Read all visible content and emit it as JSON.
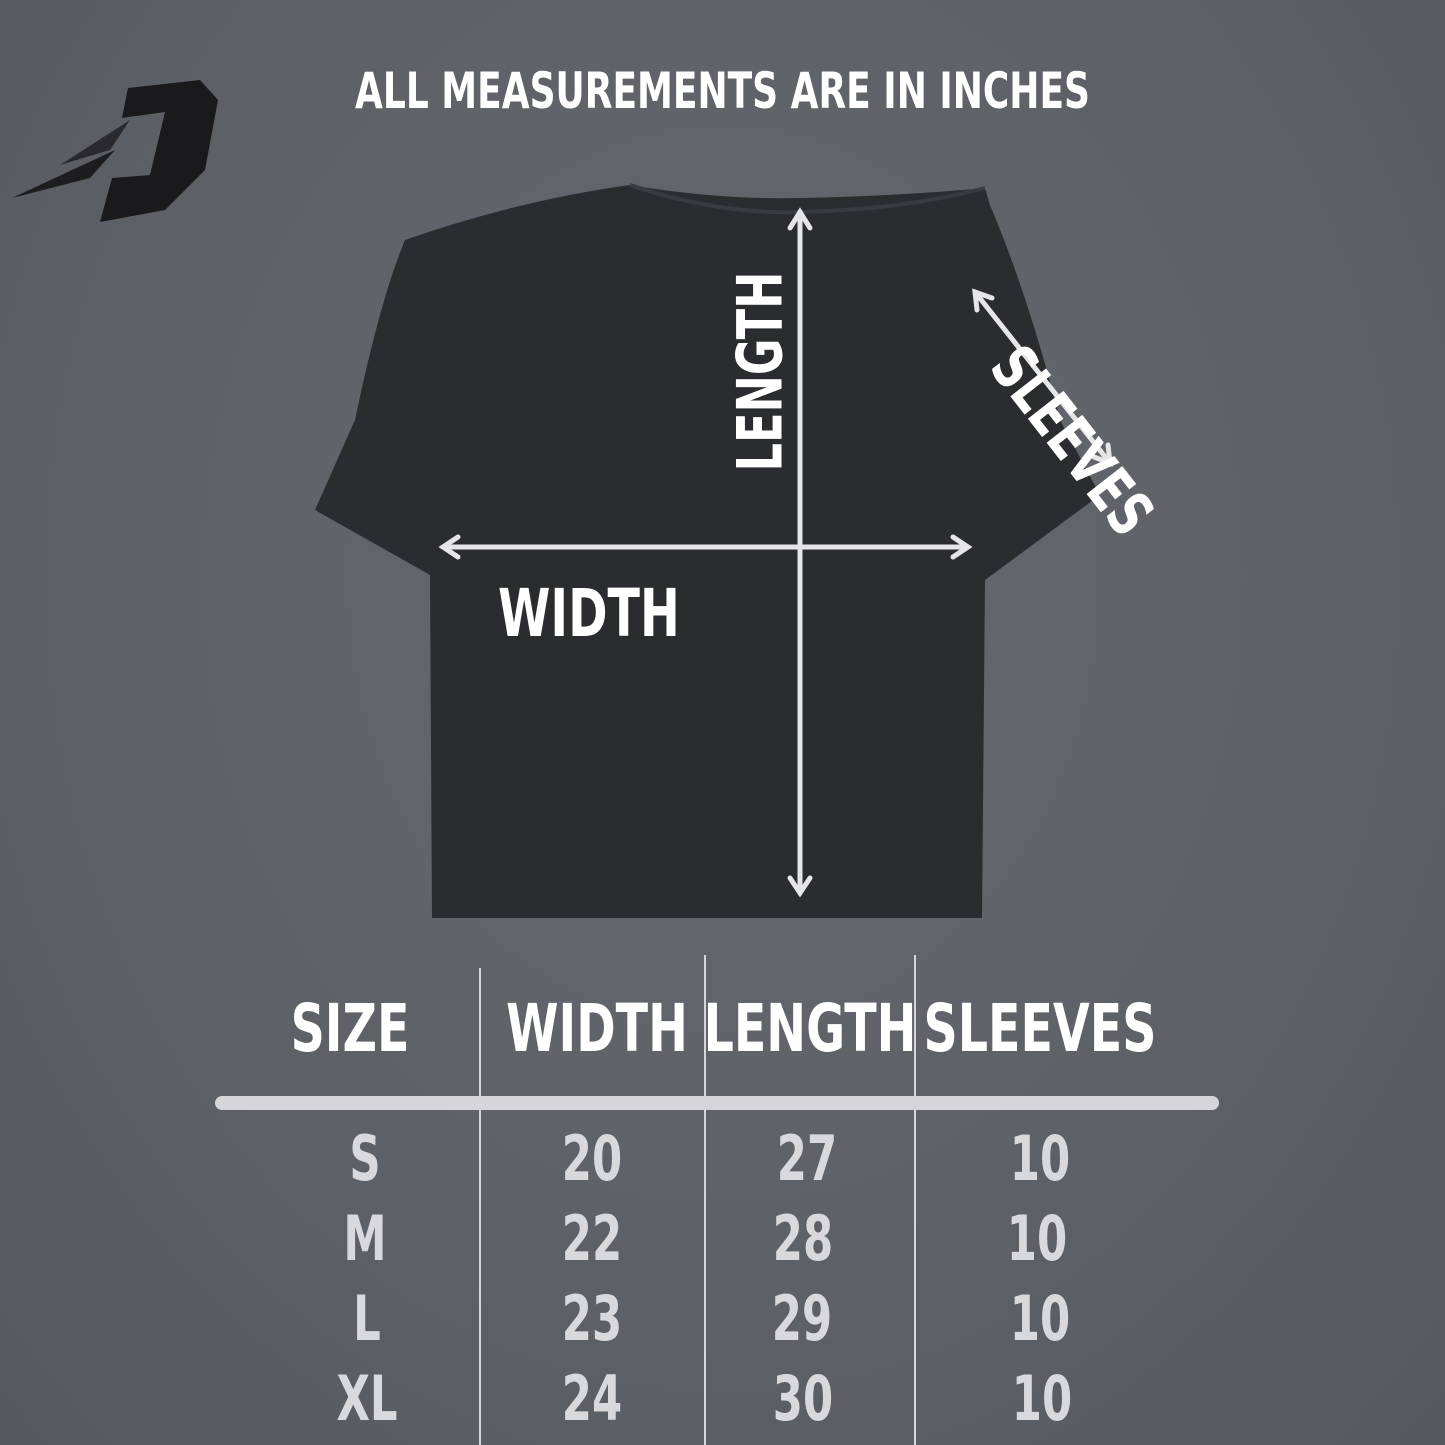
{
  "logo": {
    "text": "D",
    "icon": "stylized-d-logo"
  },
  "title": "ALL MEASUREMENTS ARE IN INCHES",
  "diagram": {
    "length_label": "LENGTH",
    "width_label": "WIDTH",
    "sleeves_label": "SLEEVES"
  },
  "table": {
    "headers": [
      "SIZE",
      "WIDTH",
      "LENGTH",
      "SLEEVES"
    ],
    "rows": [
      [
        "S",
        "20",
        "27",
        "10"
      ],
      [
        "M",
        "22",
        "28",
        "10"
      ],
      [
        "L",
        "23",
        "29",
        "10"
      ],
      [
        "XL",
        "24",
        "30",
        "10"
      ]
    ]
  },
  "colors": {
    "background": "#5f6168",
    "shirt": "#2b2c30",
    "text": "#ffffff",
    "table_values": "#d9d9dd"
  }
}
